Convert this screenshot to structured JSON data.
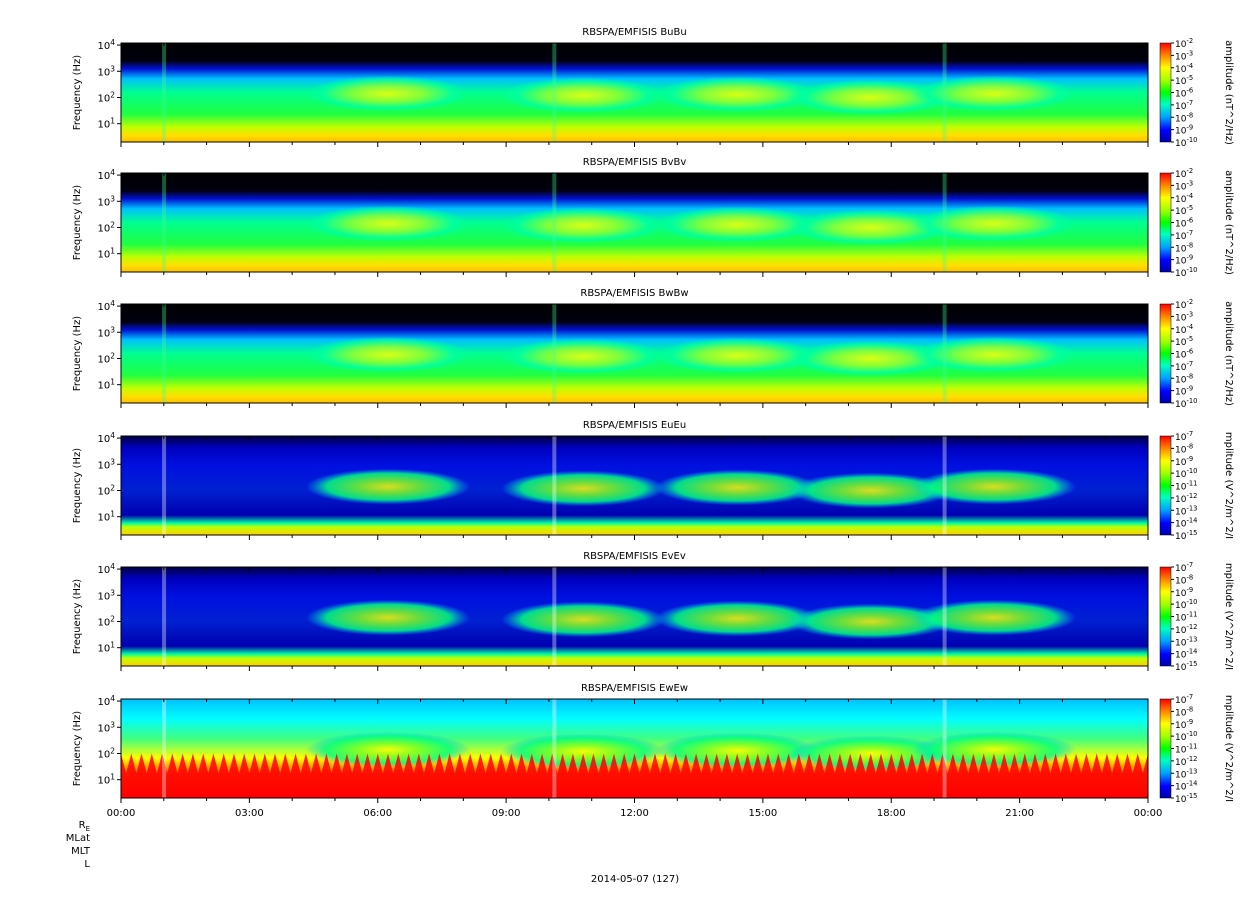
{
  "chart_data": [
    {
      "type": "heatmap",
      "title": "RBSPA/EMFISIS  BuBu",
      "ylabel": "Frequency (Hz)",
      "yscale": "log",
      "ylim": [
        2,
        12000
      ],
      "yticks": [
        "10^4",
        "10^3",
        "10^2",
        "10^1"
      ],
      "colorbar_label": "amplitude (nT^2/Hz)",
      "colorbar_ticks": [
        "10^-2",
        "10^-3",
        "10^-4",
        "10^-5",
        "10^-6",
        "10^-7",
        "10^-8",
        "10^-9",
        "10^-10"
      ],
      "colorbar_range": [
        -10,
        -2
      ]
    },
    {
      "type": "heatmap",
      "title": "RBSPA/EMFISIS  BvBv",
      "ylabel": "Frequency (Hz)",
      "yscale": "log",
      "ylim": [
        2,
        12000
      ],
      "yticks": [
        "10^4",
        "10^3",
        "10^2",
        "10^1"
      ],
      "colorbar_label": "amplitude (nT^2/Hz)",
      "colorbar_ticks": [
        "10^-2",
        "10^-3",
        "10^-4",
        "10^-5",
        "10^-6",
        "10^-7",
        "10^-8",
        "10^-9",
        "10^-10"
      ],
      "colorbar_range": [
        -10,
        -2
      ]
    },
    {
      "type": "heatmap",
      "title": "RBSPA/EMFISIS  BwBw",
      "ylabel": "Frequency (Hz)",
      "yscale": "log",
      "ylim": [
        2,
        12000
      ],
      "yticks": [
        "10^4",
        "10^3",
        "10^2",
        "10^1"
      ],
      "colorbar_label": "amplitude (nT^2/Hz)",
      "colorbar_ticks": [
        "10^-2",
        "10^-3",
        "10^-4",
        "10^-5",
        "10^-6",
        "10^-7",
        "10^-8",
        "10^-9",
        "10^-10"
      ],
      "colorbar_range": [
        -10,
        -2
      ]
    },
    {
      "type": "heatmap",
      "title": "RBSPA/EMFISIS  EuEu",
      "ylabel": "Frequency (Hz)",
      "yscale": "log",
      "ylim": [
        2,
        12000
      ],
      "yticks": [
        "10^4",
        "10^3",
        "10^2",
        "10^1"
      ],
      "colorbar_label": "mplitude (V^2/m^2/I",
      "colorbar_ticks": [
        "10^-7",
        "10^-8",
        "10^-9",
        "10^-10",
        "10^-11",
        "10^-12",
        "10^-13",
        "10^-14",
        "10^-15"
      ],
      "colorbar_range": [
        -15,
        -7
      ]
    },
    {
      "type": "heatmap",
      "title": "RBSPA/EMFISIS  EvEv",
      "ylabel": "Frequency (Hz)",
      "yscale": "log",
      "ylim": [
        2,
        12000
      ],
      "yticks": [
        "10^4",
        "10^3",
        "10^2",
        "10^1"
      ],
      "colorbar_label": "mplitude (V^2/m^2/I",
      "colorbar_ticks": [
        "10^-7",
        "10^-8",
        "10^-9",
        "10^-10",
        "10^-11",
        "10^-12",
        "10^-13",
        "10^-14",
        "10^-15"
      ],
      "colorbar_range": [
        -15,
        -7
      ]
    },
    {
      "type": "heatmap",
      "title": "RBSPA/EMFISIS  EwEw",
      "ylabel": "Frequency (Hz)",
      "yscale": "log",
      "ylim": [
        2,
        12000
      ],
      "yticks": [
        "10^4",
        "10^3",
        "10^2",
        "10^1"
      ],
      "colorbar_label": "mplitude (V^2/m^2/I",
      "colorbar_ticks": [
        "10^-7",
        "10^-8",
        "10^-9",
        "10^-10",
        "10^-11",
        "10^-12",
        "10^-13",
        "10^-14",
        "10^-15"
      ],
      "colorbar_range": [
        -15,
        -7
      ],
      "xlabel": "",
      "xticks": [
        "00:00",
        "03:00",
        "06:00",
        "09:00",
        "12:00",
        "15:00",
        "18:00",
        "21:00",
        "00:00"
      ]
    }
  ],
  "footer": {
    "rows": [
      "R",
      "MLat",
      "MLT",
      "L"
    ],
    "re_subscript": "E",
    "date": "2014-05-07 (127)"
  }
}
